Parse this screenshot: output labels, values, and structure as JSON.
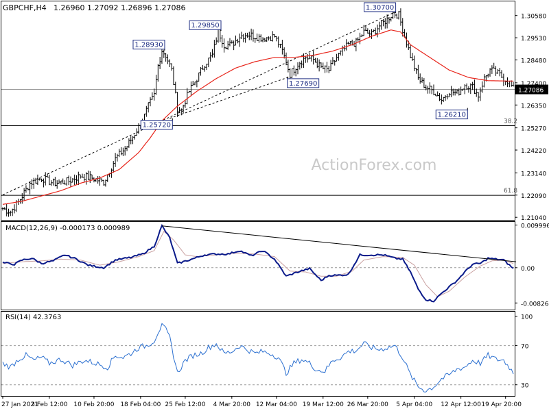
{
  "chart_data": [
    {
      "type": "ohlc",
      "title": "GBPCHF,H4",
      "header": {
        "symbol_tf": "GBPCHF,H4",
        "ohlc_text": "1.26960 1.27092 1.26896 1.27086"
      },
      "watermark": "ActionForex.com",
      "ylim": [
        1.2095,
        1.3125
      ],
      "y_ticks": [
        "1.30580",
        "1.29530",
        "1.28480",
        "1.27400",
        "1.26350",
        "1.25270",
        "1.24220",
        "1.23140",
        "1.22090",
        "1.21040"
      ],
      "x_ticks": [
        "27 Jan 2021",
        "3 Feb 12:00",
        "10 Feb 20:00",
        "18 Feb 04:00",
        "25 Feb 12:00",
        "4 Mar 20:00",
        "12 Mar 04:00",
        "19 Mar 12:00",
        "26 Mar 20:00",
        "5 Apr 04:00",
        "12 Apr 12:00",
        "19 Apr 20:00"
      ],
      "current_price_label": "1.27086",
      "current_price": 1.27086,
      "anchors": [
        [
          0,
          1.2145
        ],
        [
          4,
          1.213
        ],
        [
          8,
          1.2175
        ],
        [
          14,
          1.2265
        ],
        [
          20,
          1.229
        ],
        [
          26,
          1.2265
        ],
        [
          34,
          1.2275
        ],
        [
          40,
          1.23
        ],
        [
          46,
          1.229
        ],
        [
          52,
          1.227
        ],
        [
          58,
          1.238
        ],
        [
          64,
          1.244
        ],
        [
          68,
          1.25
        ],
        [
          72,
          1.256
        ],
        [
          75,
          1.263
        ],
        [
          78,
          1.268
        ],
        [
          80,
          1.282
        ],
        [
          82,
          1.2893
        ],
        [
          84,
          1.287
        ],
        [
          87,
          1.28
        ],
        [
          90,
          1.262
        ],
        [
          92,
          1.261
        ],
        [
          96,
          1.27
        ],
        [
          100,
          1.276
        ],
        [
          104,
          1.283
        ],
        [
          108,
          1.287
        ],
        [
          111,
          1.2985
        ],
        [
          114,
          1.292
        ],
        [
          118,
          1.292
        ],
        [
          122,
          1.296
        ],
        [
          126,
          1.297
        ],
        [
          130,
          1.296
        ],
        [
          134,
          1.295
        ],
        [
          140,
          1.296
        ],
        [
          144,
          1.289
        ],
        [
          148,
          1.278
        ],
        [
          152,
          1.283
        ],
        [
          156,
          1.286
        ],
        [
          160,
          1.285
        ],
        [
          164,
          1.281
        ],
        [
          168,
          1.28
        ],
        [
          172,
          1.286
        ],
        [
          178,
          1.292
        ],
        [
          182,
          1.293
        ],
        [
          186,
          1.298
        ],
        [
          190,
          1.297
        ],
        [
          194,
          1.301
        ],
        [
          198,
          1.304
        ],
        [
          201,
          1.307
        ],
        [
          204,
          1.306
        ],
        [
          207,
          1.296
        ],
        [
          210,
          1.287
        ],
        [
          214,
          1.276
        ],
        [
          218,
          1.272
        ],
        [
          222,
          1.27
        ],
        [
          226,
          1.266
        ],
        [
          230,
          1.27
        ],
        [
          234,
          1.269
        ],
        [
          238,
          1.273
        ],
        [
          242,
          1.272
        ],
        [
          245,
          1.268
        ],
        [
          248,
          1.276
        ],
        [
          251,
          1.28
        ],
        [
          254,
          1.279
        ],
        [
          257,
          1.277
        ],
        [
          261,
          1.274
        ],
        [
          263,
          1.2709
        ]
      ],
      "ma_anchors": [
        [
          0,
          1.2165
        ],
        [
          10,
          1.218
        ],
        [
          20,
          1.2205
        ],
        [
          30,
          1.223
        ],
        [
          40,
          1.2265
        ],
        [
          50,
          1.229
        ],
        [
          60,
          1.233
        ],
        [
          70,
          1.241
        ],
        [
          76,
          1.248
        ],
        [
          82,
          1.256
        ],
        [
          90,
          1.263
        ],
        [
          100,
          1.27
        ],
        [
          110,
          1.276
        ],
        [
          120,
          1.281
        ],
        [
          130,
          1.284
        ],
        [
          140,
          1.286
        ],
        [
          150,
          1.286
        ],
        [
          160,
          1.287
        ],
        [
          170,
          1.289
        ],
        [
          180,
          1.292
        ],
        [
          190,
          1.296
        ],
        [
          200,
          1.299
        ],
        [
          205,
          1.298
        ],
        [
          210,
          1.292
        ],
        [
          220,
          1.286
        ],
        [
          230,
          1.28
        ],
        [
          240,
          1.2765
        ],
        [
          250,
          1.275
        ],
        [
          263,
          1.2748
        ]
      ],
      "price_labels": [
        {
          "text": "1.28930",
          "i": 82,
          "price": 1.2893,
          "side": "left",
          "pos": "above"
        },
        {
          "text": "1.29850",
          "i": 111,
          "price": 1.2985,
          "side": "left",
          "pos": "above"
        },
        {
          "text": "1.30700",
          "i": 201,
          "price": 1.307,
          "side": "left",
          "pos": "above"
        },
        {
          "text": "1.25720",
          "i": 86,
          "price": 1.2572,
          "side": "left",
          "pos": "below"
        },
        {
          "text": "1.27690",
          "i": 148,
          "price": 1.2769,
          "side": "right",
          "pos": "below"
        },
        {
          "text": "1.26210",
          "i": 238,
          "price": 1.2621,
          "side": "left",
          "pos": "below"
        }
      ],
      "fib_levels": [
        {
          "label": "38.2",
          "price": 1.2537
        },
        {
          "label": "61.8",
          "price": 1.2208
        }
      ],
      "trend_channel": [
        [
          0,
          1.221
        ],
        [
          201,
          1.307
        ]
      ],
      "support_line": [
        [
          86,
          1.2572
        ],
        [
          148,
          1.2769
        ]
      ]
    },
    {
      "type": "line",
      "title": "MACD(12,26,9) -0.000173 0.000989",
      "ylim": [
        -0.0095,
        0.0104
      ],
      "y_ticks": [
        "0.009996",
        "0.00",
        "-0.008264"
      ],
      "zero_label": "0.00",
      "macd_anchors": [
        [
          0,
          0.0012
        ],
        [
          6,
          0.0008
        ],
        [
          10,
          0.0018
        ],
        [
          15,
          0.0022
        ],
        [
          20,
          0.001
        ],
        [
          26,
          0.0016
        ],
        [
          32,
          0.003
        ],
        [
          38,
          0.002
        ],
        [
          44,
          0.0006
        ],
        [
          52,
          0.0
        ],
        [
          58,
          0.0018
        ],
        [
          66,
          0.0024
        ],
        [
          72,
          0.0032
        ],
        [
          78,
          0.005
        ],
        [
          82,
          0.0098
        ],
        [
          86,
          0.007
        ],
        [
          90,
          0.001
        ],
        [
          96,
          0.0018
        ],
        [
          104,
          0.003
        ],
        [
          110,
          0.0032
        ],
        [
          116,
          0.0032
        ],
        [
          122,
          0.004
        ],
        [
          128,
          0.0028
        ],
        [
          134,
          0.004
        ],
        [
          140,
          0.002
        ],
        [
          146,
          -0.002
        ],
        [
          152,
          -0.001
        ],
        [
          158,
          -0.0002
        ],
        [
          164,
          -0.003
        ],
        [
          168,
          -0.0018
        ],
        [
          172,
          -0.0018
        ],
        [
          178,
          -0.0016
        ],
        [
          184,
          0.003
        ],
        [
          190,
          0.003
        ],
        [
          196,
          0.003
        ],
        [
          202,
          0.0022
        ],
        [
          206,
          0.002
        ],
        [
          210,
          -0.001
        ],
        [
          214,
          -0.005
        ],
        [
          218,
          -0.0075
        ],
        [
          222,
          -0.0078
        ],
        [
          226,
          -0.006
        ],
        [
          230,
          -0.0045
        ],
        [
          234,
          -0.003
        ],
        [
          238,
          -0.001
        ],
        [
          242,
          0.0008
        ],
        [
          246,
          0.001
        ],
        [
          250,
          0.0022
        ],
        [
          254,
          0.002
        ],
        [
          258,
          0.0018
        ],
        [
          263,
          -0.0002
        ]
      ],
      "signal_anchors": [
        [
          0,
          0.001
        ],
        [
          10,
          0.0014
        ],
        [
          20,
          0.0016
        ],
        [
          30,
          0.002
        ],
        [
          40,
          0.0018
        ],
        [
          50,
          0.0006
        ],
        [
          60,
          0.0014
        ],
        [
          70,
          0.0026
        ],
        [
          78,
          0.004
        ],
        [
          83,
          0.0085
        ],
        [
          88,
          0.0065
        ],
        [
          94,
          0.003
        ],
        [
          100,
          0.0026
        ],
        [
          110,
          0.003
        ],
        [
          120,
          0.0034
        ],
        [
          130,
          0.0032
        ],
        [
          140,
          0.0026
        ],
        [
          148,
          -0.0008
        ],
        [
          156,
          -0.001
        ],
        [
          164,
          -0.002
        ],
        [
          172,
          -0.002
        ],
        [
          180,
          -0.0008
        ],
        [
          186,
          0.0018
        ],
        [
          196,
          0.0026
        ],
        [
          206,
          0.0024
        ],
        [
          212,
          0.0006
        ],
        [
          218,
          -0.004
        ],
        [
          224,
          -0.0068
        ],
        [
          230,
          -0.0055
        ],
        [
          238,
          -0.0022
        ],
        [
          246,
          0.0004
        ],
        [
          252,
          0.0016
        ],
        [
          258,
          0.0018
        ],
        [
          263,
          0.001
        ]
      ],
      "trendline": [
        [
          82,
          0.0098
        ],
        [
          263,
          0.0016
        ]
      ]
    },
    {
      "type": "line",
      "title": "RSI(14) 42.3763",
      "ylim": [
        20,
        104
      ],
      "y_ticks": [
        "100",
        "70",
        "30"
      ],
      "levels": [
        70,
        30
      ],
      "rsi_anchors": [
        [
          0,
          52
        ],
        [
          4,
          48
        ],
        [
          8,
          56
        ],
        [
          12,
          60
        ],
        [
          16,
          55
        ],
        [
          20,
          58
        ],
        [
          24,
          52
        ],
        [
          30,
          56
        ],
        [
          36,
          50
        ],
        [
          42,
          55
        ],
        [
          48,
          52
        ],
        [
          54,
          48
        ],
        [
          58,
          60
        ],
        [
          62,
          58
        ],
        [
          66,
          62
        ],
        [
          70,
          68
        ],
        [
          74,
          70
        ],
        [
          78,
          75
        ],
        [
          80,
          84
        ],
        [
          82,
          90
        ],
        [
          84,
          86
        ],
        [
          86,
          78
        ],
        [
          88,
          60
        ],
        [
          90,
          42
        ],
        [
          94,
          55
        ],
        [
          98,
          60
        ],
        [
          102,
          62
        ],
        [
          106,
          68
        ],
        [
          110,
          72
        ],
        [
          114,
          62
        ],
        [
          118,
          64
        ],
        [
          122,
          70
        ],
        [
          126,
          66
        ],
        [
          130,
          62
        ],
        [
          134,
          64
        ],
        [
          138,
          62
        ],
        [
          142,
          58
        ],
        [
          146,
          42
        ],
        [
          150,
          52
        ],
        [
          154,
          56
        ],
        [
          158,
          52
        ],
        [
          162,
          45
        ],
        [
          166,
          44
        ],
        [
          170,
          55
        ],
        [
          174,
          58
        ],
        [
          178,
          64
        ],
        [
          182,
          65
        ],
        [
          186,
          72
        ],
        [
          190,
          68
        ],
        [
          194,
          66
        ],
        [
          198,
          68
        ],
        [
          202,
          70
        ],
        [
          206,
          58
        ],
        [
          210,
          40
        ],
        [
          214,
          28
        ],
        [
          218,
          24
        ],
        [
          222,
          28
        ],
        [
          226,
          36
        ],
        [
          230,
          40
        ],
        [
          234,
          46
        ],
        [
          238,
          48
        ],
        [
          242,
          55
        ],
        [
          246,
          52
        ],
        [
          250,
          60
        ],
        [
          254,
          56
        ],
        [
          258,
          55
        ],
        [
          261,
          48
        ],
        [
          263,
          42
        ]
      ]
    }
  ]
}
